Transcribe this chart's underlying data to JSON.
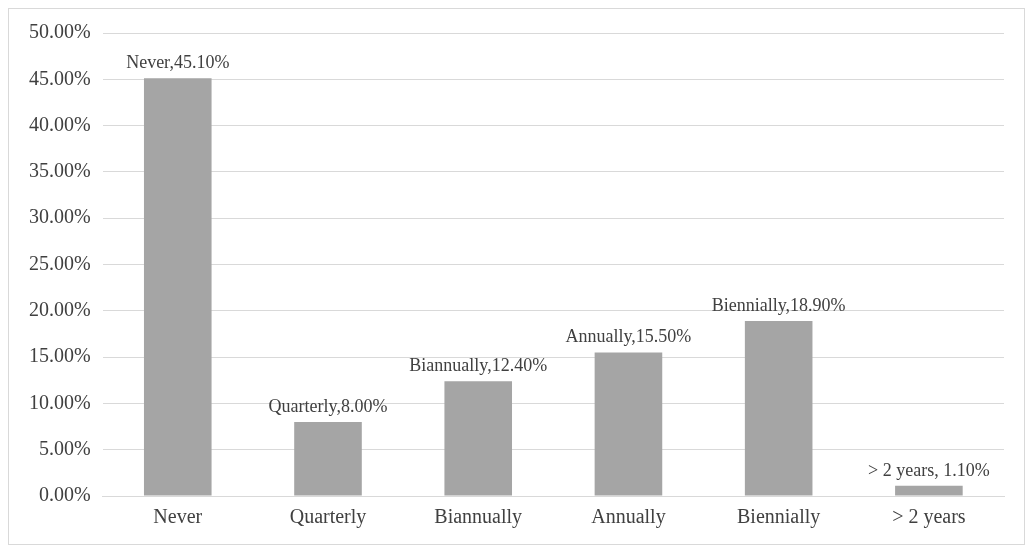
{
  "chart_data": {
    "type": "bar",
    "categories": [
      "Never",
      "Quarterly",
      "Biannually",
      "Annually",
      "Biennially",
      "> 2 years"
    ],
    "values": [
      45.1,
      8.0,
      12.4,
      15.5,
      18.9,
      1.1
    ],
    "value_labels": [
      "Never,45.10%",
      "Quarterly,8.00%",
      "Biannually,12.40%",
      "Annually,15.50%",
      "Biennially,18.90%",
      "> 2 years, 1.10%"
    ],
    "color": "#a5a5a5",
    "ylim": [
      0,
      50
    ],
    "yticks": [
      {
        "value": 0,
        "label": "0.00%"
      },
      {
        "value": 5,
        "label": "5.00%"
      },
      {
        "value": 10,
        "label": "10.00%"
      },
      {
        "value": 15,
        "label": "15.00%"
      },
      {
        "value": 20,
        "label": "20.00%"
      },
      {
        "value": 25,
        "label": "25.00%"
      },
      {
        "value": 30,
        "label": "30.00%"
      },
      {
        "value": 35,
        "label": "35.00%"
      },
      {
        "value": 40,
        "label": "40.00%"
      },
      {
        "value": 45,
        "label": "45.00%"
      },
      {
        "value": 50,
        "label": "50.00%"
      }
    ],
    "grid": "y",
    "legend": false
  }
}
